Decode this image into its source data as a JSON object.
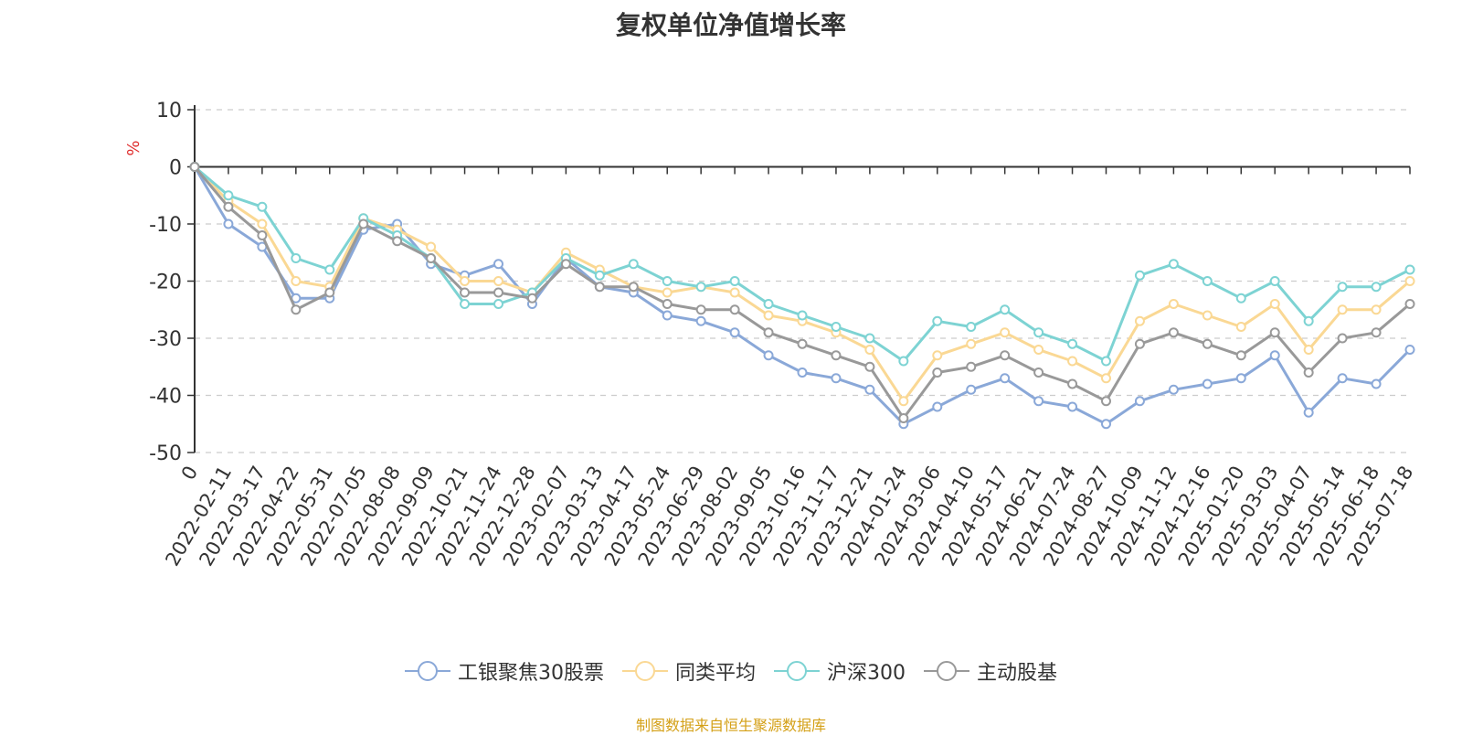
{
  "chart_data": {
    "type": "line",
    "title": "复权单位净值增长率",
    "ylabel": "%",
    "ylim": [
      -50,
      10
    ],
    "yticks": [
      10,
      0,
      -10,
      -20,
      -30,
      -40,
      -50
    ],
    "grid": true,
    "legend_position": "bottom",
    "x_tick_labels": [
      "0",
      "2022-02-11",
      "2022-03-17",
      "2022-04-22",
      "2022-05-31",
      "2022-07-05",
      "2022-08-08",
      "2022-09-09",
      "2022-10-21",
      "2022-11-24",
      "2022-12-28",
      "2023-02-07",
      "2023-03-13",
      "2023-04-17",
      "2023-05-24",
      "2023-06-29",
      "2023-08-02",
      "2023-09-05",
      "2023-10-16",
      "2023-11-17",
      "2023-12-21",
      "2024-01-24",
      "2024-03-06",
      "2024-04-10",
      "2024-05-17",
      "2024-06-21",
      "2024-07-24",
      "2024-08-27",
      "2024-10-09",
      "2024-11-12",
      "2024-12-16",
      "2025-01-20",
      "2025-03-03",
      "2025-04-07",
      "2025-05-14",
      "2025-06-18",
      "2025-07-18"
    ],
    "series": [
      {
        "name": "工银聚焦30股票",
        "color": "#8aa8d8",
        "values": [
          0,
          -10,
          -14,
          -23,
          -23,
          -11,
          -10,
          -17,
          -19,
          -17,
          -24,
          -16,
          -21,
          -22,
          -26,
          -27,
          -29,
          -33,
          -36,
          -37,
          -39,
          -45,
          -42,
          -39,
          -37,
          -41,
          -42,
          -45,
          -41,
          -39,
          -38,
          -37,
          -33,
          -43,
          -37,
          -38,
          -32
        ]
      },
      {
        "name": "同类平均",
        "color": "#fad894",
        "values": [
          0,
          -6,
          -10,
          -20,
          -21,
          -9,
          -11,
          -14,
          -20,
          -20,
          -22,
          -15,
          -18,
          -21,
          -22,
          -21,
          -22,
          -26,
          -27,
          -29,
          -32,
          -41,
          -33,
          -31,
          -29,
          -32,
          -34,
          -37,
          -27,
          -24,
          -26,
          -28,
          -24,
          -32,
          -25,
          -25,
          -20
        ]
      },
      {
        "name": "沪深300",
        "color": "#7dd3d3",
        "values": [
          0,
          -5,
          -7,
          -16,
          -18,
          -9,
          -12,
          -16,
          -24,
          -24,
          -22,
          -16,
          -19,
          -17,
          -20,
          -21,
          -20,
          -24,
          -26,
          -28,
          -30,
          -34,
          -27,
          -28,
          -25,
          -29,
          -31,
          -34,
          -19,
          -17,
          -20,
          -23,
          -20,
          -27,
          -21,
          -21,
          -18
        ]
      },
      {
        "name": "主动股基",
        "color": "#999999",
        "values": [
          0,
          -7,
          -12,
          -25,
          -22,
          -10,
          -13,
          -16,
          -22,
          -22,
          -23,
          -17,
          -21,
          -21,
          -24,
          -25,
          -25,
          -29,
          -31,
          -33,
          -35,
          -44,
          -36,
          -35,
          -33,
          -36,
          -38,
          -41,
          -31,
          -29,
          -31,
          -33,
          -29,
          -36,
          -30,
          -29,
          -24
        ]
      }
    ]
  },
  "legend": {
    "items": [
      {
        "label": "工银聚焦30股票",
        "color": "#8aa8d8"
      },
      {
        "label": "同类平均",
        "color": "#fad894"
      },
      {
        "label": "沪深300",
        "color": "#7dd3d3"
      },
      {
        "label": "主动股基",
        "color": "#999999"
      }
    ]
  },
  "footer": {
    "source": "制图数据来自恒生聚源数据库"
  }
}
